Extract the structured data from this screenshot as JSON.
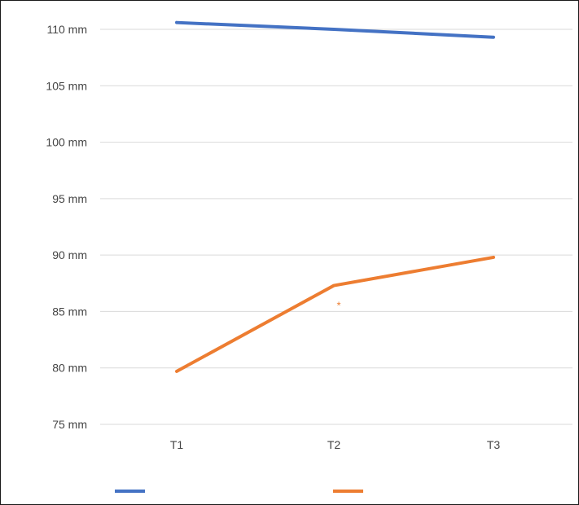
{
  "chart_data": {
    "type": "line",
    "title": "",
    "xlabel": "",
    "ylabel": "",
    "categories": [
      "T1",
      "T2",
      "T3"
    ],
    "y_ticks": [
      "75 mm",
      "80 mm",
      "85 mm",
      "90 mm",
      "95 mm",
      "100 mm",
      "105 mm",
      "110 mm"
    ],
    "y_tick_values": [
      75,
      80,
      85,
      90,
      95,
      100,
      105,
      110
    ],
    "ylim": [
      75,
      110
    ],
    "grid": true,
    "legend": "bottom",
    "series": [
      {
        "values": [
          110.6,
          110.0,
          109.3
        ],
        "color": "#4472c4"
      },
      {
        "values": [
          79.7,
          87.3,
          89.8
        ],
        "color": "#ed7d31"
      }
    ],
    "annotations": [
      {
        "text": "*",
        "category_index": 1,
        "y": 85.8,
        "color": "#ed7d31"
      }
    ]
  }
}
